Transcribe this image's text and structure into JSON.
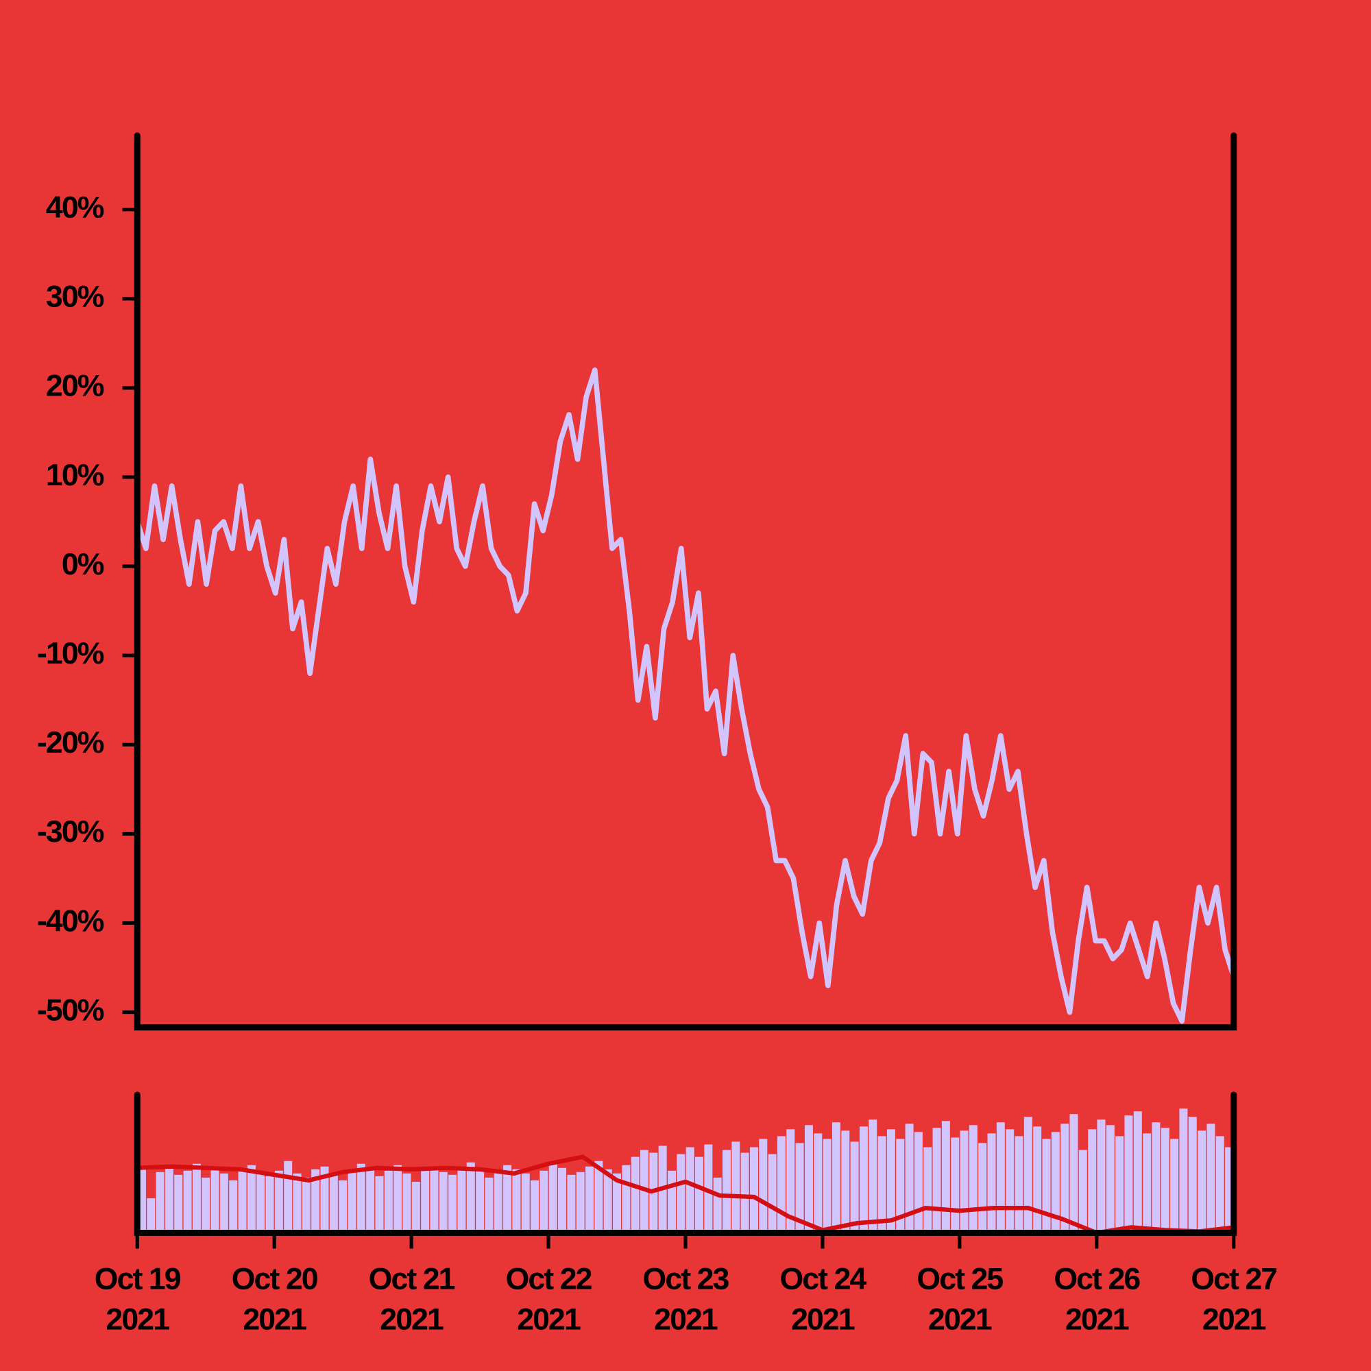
{
  "chart_data": [
    {
      "type": "line",
      "color": "#d2c4ff",
      "xlim": [
        "2021-10-19",
        "2021-10-27"
      ],
      "ylim": [
        -51.7,
        48.3
      ],
      "yticks": [
        {
          "value": -50,
          "label": "-50%"
        },
        {
          "value": -40,
          "label": "-40%"
        },
        {
          "value": -30,
          "label": "-30%"
        },
        {
          "value": -20,
          "label": "-20%"
        },
        {
          "value": -10,
          "label": "-10%"
        },
        {
          "value": 0,
          "label": "0%"
        },
        {
          "value": 10,
          "label": "10%"
        },
        {
          "value": 20,
          "label": "20%"
        },
        {
          "value": 30,
          "label": "30%"
        },
        {
          "value": 40,
          "label": "40%"
        }
      ],
      "values": [
        5,
        2,
        9,
        3,
        9,
        3,
        -2,
        5,
        -2,
        4,
        5,
        2,
        9,
        2,
        5,
        0,
        -3,
        3,
        -7,
        -4,
        -12,
        -5,
        2,
        -2,
        5,
        9,
        2,
        12,
        6,
        2,
        9,
        0,
        -4,
        4,
        9,
        5,
        10,
        2,
        0,
        5,
        9,
        2,
        0,
        -1,
        -5,
        -3,
        7,
        4,
        8,
        14,
        17,
        12,
        19,
        22,
        12,
        2,
        3,
        -5,
        -15,
        -9,
        -17,
        -7,
        -4,
        2,
        -8,
        -3,
        -16,
        -14,
        -21,
        -10,
        -16,
        -21,
        -25,
        -27,
        -33,
        -33,
        -35,
        -41,
        -46,
        -40,
        -47,
        -38,
        -33,
        -37,
        -39,
        -33,
        -31,
        -26,
        -24,
        -19,
        -30,
        -21,
        -22,
        -30,
        -23,
        -30,
        -19,
        -25,
        -28,
        -24,
        -19,
        -25,
        -23,
        -30,
        -36,
        -33,
        -41,
        -46,
        -50,
        -42,
        -36,
        -42,
        -42,
        -44,
        -43,
        -40,
        -43,
        -46,
        -40,
        -44,
        -49,
        -51,
        -43,
        -36,
        -40,
        -36,
        -43,
        -46
      ]
    },
    {
      "type": "bar",
      "xlim": [
        "2021-10-19",
        "2021-10-27"
      ],
      "ylim": [
        0,
        100
      ],
      "xticks": [
        {
          "value": "2021-10-19",
          "label": "Oct 19\n2021"
        },
        {
          "value": "2021-10-20",
          "label": "Oct 20\n2021"
        },
        {
          "value": "2021-10-21",
          "label": "Oct 21\n2021"
        },
        {
          "value": "2021-10-22",
          "label": "Oct 22\n2021"
        },
        {
          "value": "2021-10-23",
          "label": "Oct 23\n2021"
        },
        {
          "value": "2021-10-24",
          "label": "Oct 24\n2021"
        },
        {
          "value": "2021-10-25",
          "label": "Oct 25\n2021"
        },
        {
          "value": "2021-10-26",
          "label": "Oct 26\n2021"
        },
        {
          "value": "2021-10-27",
          "label": "Oct 27\n2021"
        }
      ],
      "series": [
        {
          "type": "bar",
          "color": "#d2c4ff",
          "values": [
            48,
            25,
            44,
            47,
            42,
            45,
            50,
            40,
            46,
            43,
            38,
            47,
            49,
            44,
            41,
            45,
            52,
            43,
            40,
            46,
            48,
            42,
            38,
            44,
            50,
            47,
            41,
            45,
            49,
            43,
            37,
            46,
            48,
            44,
            42,
            47,
            51,
            45,
            40,
            44,
            49,
            46,
            43,
            38,
            45,
            50,
            47,
            42,
            44,
            48,
            52,
            46,
            43,
            49,
            55,
            60,
            58,
            63,
            45,
            57,
            62,
            55,
            64,
            40,
            60,
            66,
            58,
            62,
            68,
            57,
            70,
            75,
            65,
            78,
            72,
            68,
            80,
            74,
            66,
            77,
            82,
            70,
            75,
            68,
            79,
            73,
            62,
            76,
            81,
            69,
            74,
            78,
            65,
            72,
            80,
            75,
            70,
            84,
            77,
            68,
            73,
            79,
            86,
            60,
            75,
            82,
            78,
            70,
            85,
            88,
            72,
            80,
            76,
            68,
            90,
            84,
            74,
            79,
            70,
            62
          ]
        },
        {
          "type": "line",
          "color": "#d40f12",
          "values": [
            47,
            48,
            47,
            46,
            42,
            38,
            44,
            47,
            46,
            47,
            46,
            43,
            50,
            55,
            38,
            30,
            37,
            27,
            26,
            12,
            2,
            7,
            9,
            18,
            16,
            18,
            18,
            10,
            0,
            4,
            2,
            1,
            4
          ]
        }
      ]
    }
  ]
}
